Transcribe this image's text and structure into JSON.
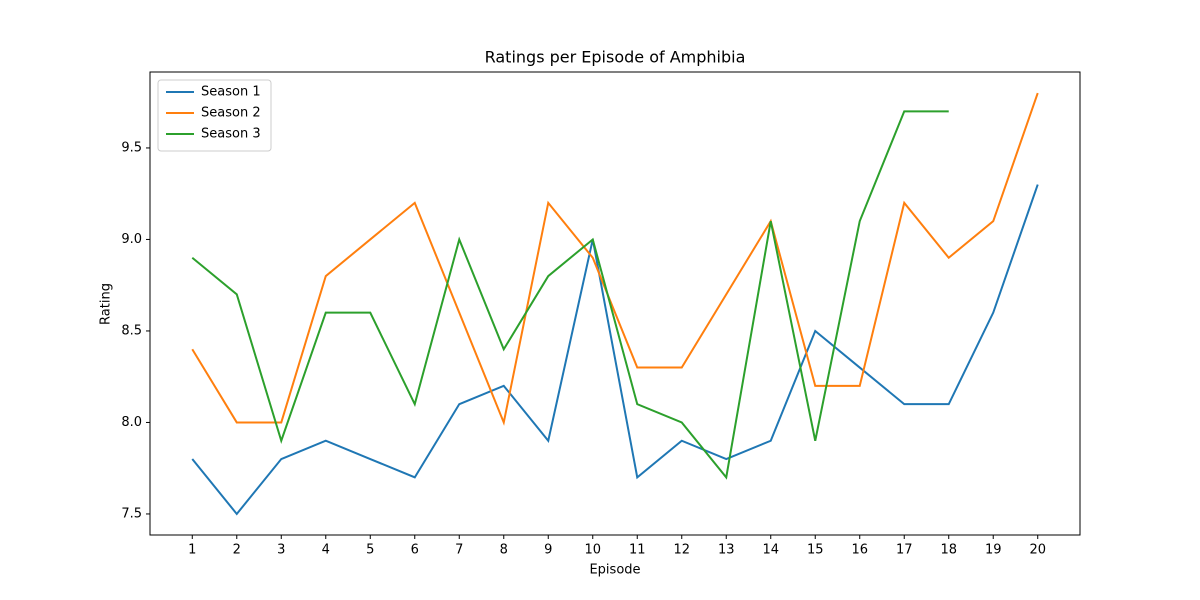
{
  "chart_data": {
    "type": "line",
    "title": "Ratings per Episode of Amphibia",
    "x_label": "Episode",
    "y_label": "Rating",
    "x": [
      1,
      2,
      3,
      4,
      5,
      6,
      7,
      8,
      9,
      10,
      11,
      12,
      13,
      14,
      15,
      16,
      17,
      18,
      19,
      20
    ],
    "series": [
      {
        "name": "Season 1",
        "color": "#1f77b4",
        "values": [
          7.8,
          7.5,
          7.8,
          7.9,
          7.8,
          7.7,
          8.1,
          8.2,
          7.9,
          9.0,
          7.7,
          7.9,
          7.8,
          7.9,
          8.5,
          8.3,
          8.1,
          8.1,
          8.6,
          9.3
        ]
      },
      {
        "name": "Season 2",
        "color": "#ff7f0e",
        "values": [
          8.4,
          8.0,
          8.0,
          8.8,
          9.0,
          9.2,
          8.6,
          8.0,
          9.2,
          8.9,
          8.3,
          8.3,
          8.7,
          9.1,
          8.2,
          8.2,
          9.2,
          8.9,
          9.1,
          9.8
        ]
      },
      {
        "name": "Season 3",
        "color": "#2ca02c",
        "values": [
          8.9,
          8.7,
          7.9,
          8.6,
          8.6,
          8.1,
          9.0,
          8.4,
          8.8,
          9.0,
          8.1,
          8.0,
          7.7,
          9.1,
          7.9,
          9.1,
          9.7,
          9.7,
          null,
          null
        ]
      }
    ],
    "xlim": [
      0.05,
      20.95
    ],
    "xticks": [
      1,
      2,
      3,
      4,
      5,
      6,
      7,
      8,
      9,
      10,
      11,
      12,
      13,
      14,
      15,
      16,
      17,
      18,
      19,
      20
    ],
    "ylim": [
      7.385,
      9.915
    ],
    "yticks": [
      {
        "value": 7.5,
        "label": "7.5"
      },
      {
        "value": 8.0,
        "label": "8.0"
      },
      {
        "value": 8.5,
        "label": "8.5"
      },
      {
        "value": 9.0,
        "label": "9.0"
      },
      {
        "value": 9.5,
        "label": "9.5"
      }
    ],
    "legend": "upper left",
    "grid": false
  }
}
